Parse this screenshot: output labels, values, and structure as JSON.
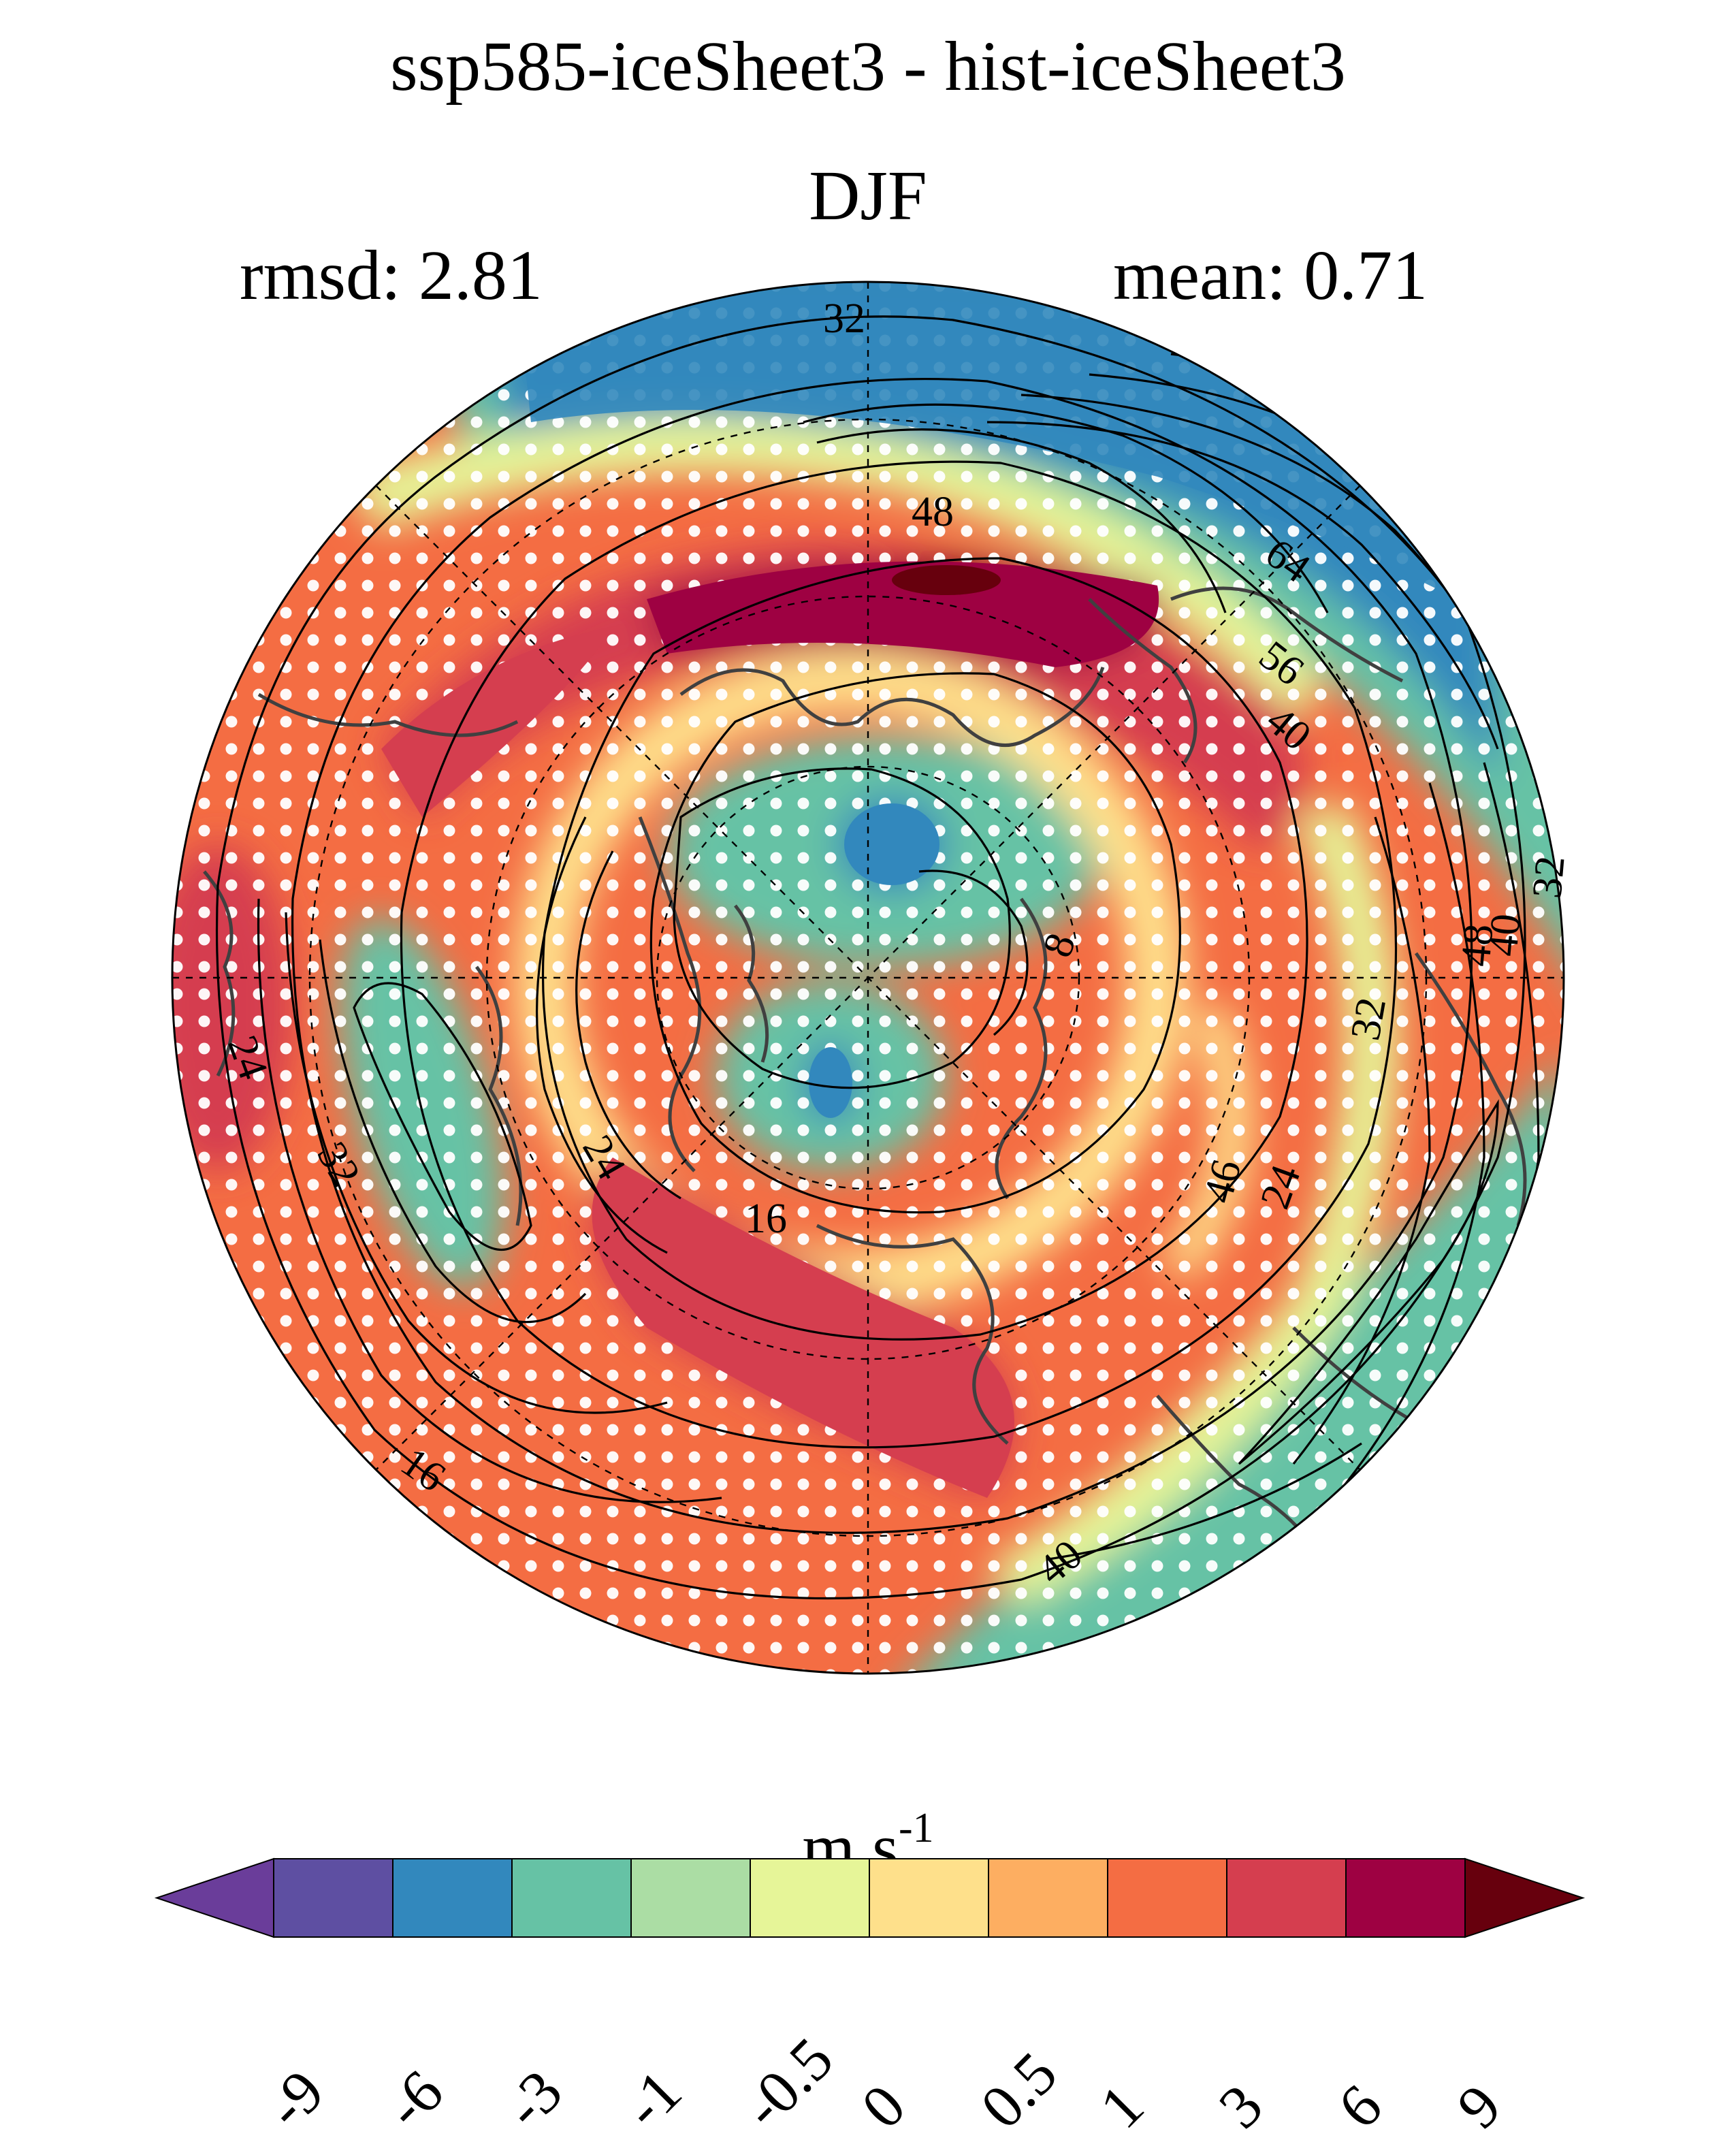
{
  "title": "ssp585-iceSheet3 - hist-iceSheet3",
  "season": "DJF",
  "stats": {
    "rmsd": "rmsd: 2.81",
    "mean": "mean: 0.71"
  },
  "contour_labels": [
    "32",
    "48",
    "64",
    "56",
    "40",
    "8",
    "16",
    "24",
    "32",
    "48",
    "40",
    "24",
    "32",
    "24",
    "16",
    "40",
    "46",
    "32"
  ],
  "colorbar": {
    "units_base": "m s",
    "units_exp": "-1",
    "ticks": [
      "-9",
      "-6",
      "-3",
      "-1",
      "-0.5",
      "0",
      "0.5",
      "1",
      "3",
      "6",
      "9"
    ],
    "colors": [
      "#5e4fa2",
      "#3288bd",
      "#66c2a5",
      "#abdda4",
      "#e6f598",
      "#fee08b",
      "#fdae61",
      "#f46d43",
      "#d53e4f",
      "#9e0142"
    ],
    "extend_low_color": "#6a3d9a",
    "extend_high_color": "#67000d"
  }
}
